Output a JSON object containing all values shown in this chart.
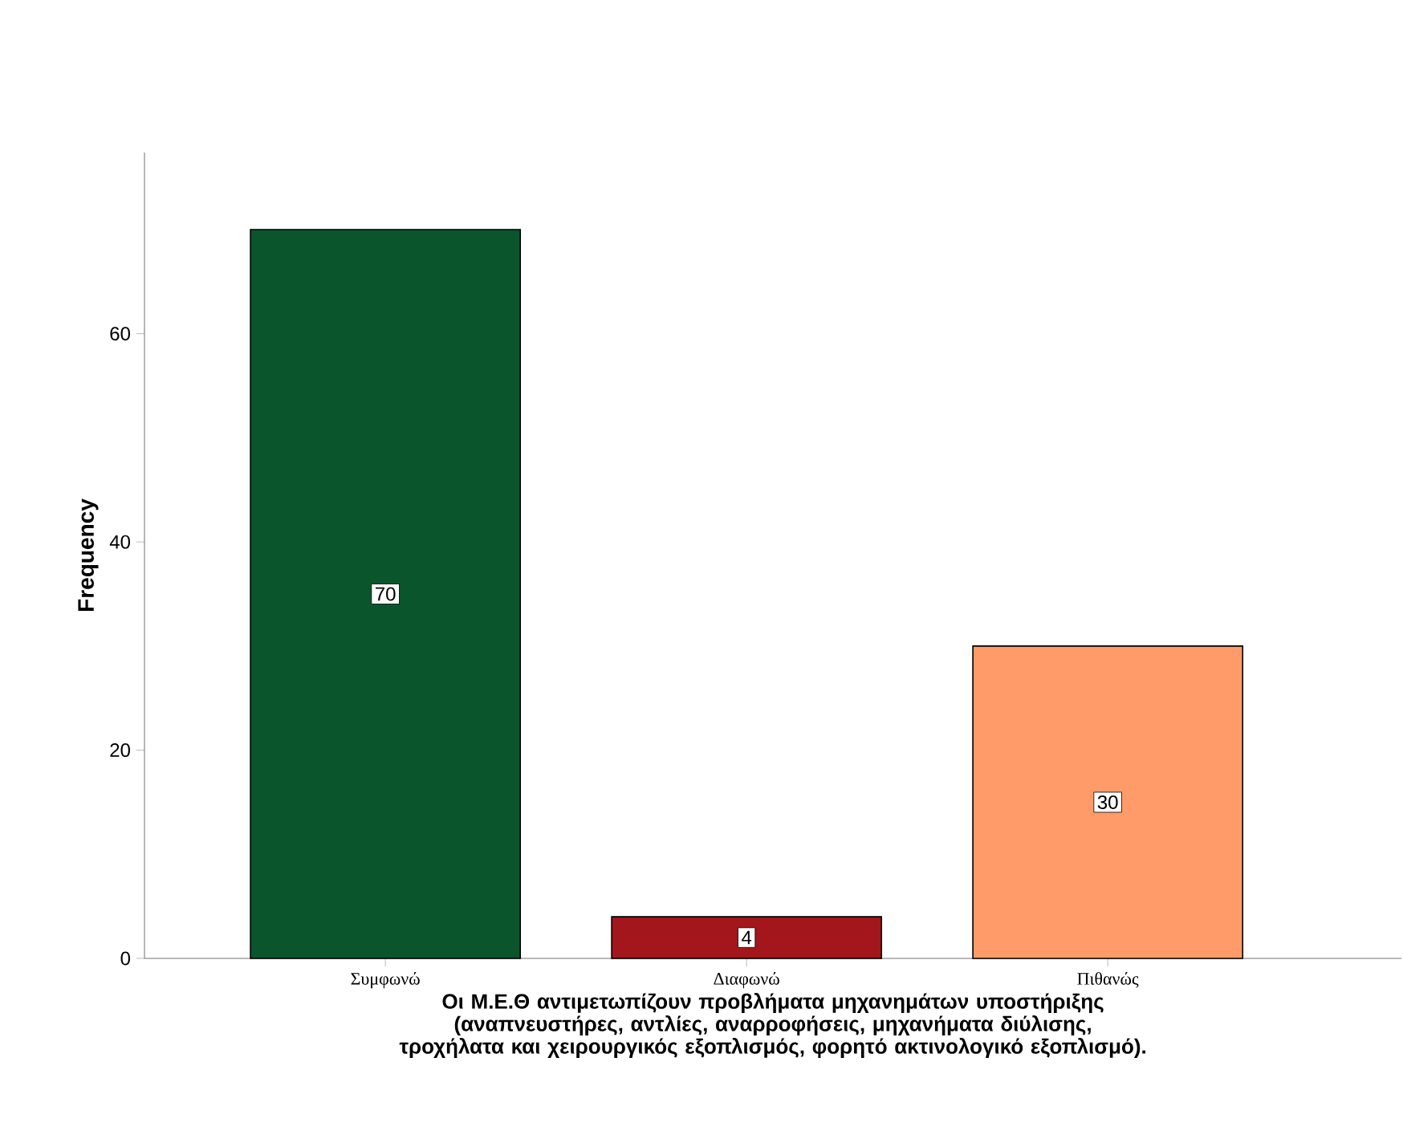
{
  "chart_data": {
    "type": "bar",
    "xlabel": "Οι Μ.Ε.Θ αντιμετωπίζουν προβλήματα μηχανημάτων υποστήριξης (αναπνευστήρες, αντλίες, αναρροφήσεις, μηχανήματα διύλισης, τροχήλατα και χειρουργικός εξοπλισμός, φορητό ακτινολογικό εξοπλισμό).",
    "ylabel": "Frequency",
    "categories": [
      "Συμφωνώ",
      "Διαφωνώ",
      "Πιθανώς"
    ],
    "values": [
      70,
      4,
      30
    ],
    "colors": [
      "#0b552d",
      "#a3161c",
      "#fe9b68"
    ],
    "ylim": [
      0,
      77.4
    ],
    "yticks": [
      0,
      20,
      40,
      60
    ],
    "data_labels": true
  }
}
